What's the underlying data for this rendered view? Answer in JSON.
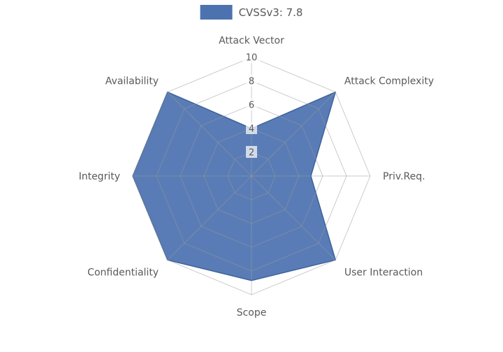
{
  "legend": {
    "label": "CVSSv3: 7.8"
  },
  "colors": {
    "series_fill": "#4C72B0",
    "series_edge": "#3D639D",
    "grid": "#9A9A9A",
    "text": "#595959",
    "tick_text": "#595959",
    "tick_box": "rgba(255,255,255,0.72)",
    "background": "#FFFFFF"
  },
  "chart_data": {
    "type": "radar",
    "title": "",
    "legend": [
      "CVSSv3: 7.8"
    ],
    "legend_position": "upper center",
    "axes": [
      "Attack Vector",
      "Attack Complexity",
      "Priv.Req.",
      "User Interaction",
      "Scope",
      "Confidentiality",
      "Integrity",
      "Availability"
    ],
    "series": [
      {
        "name": "CVSSv3: 7.8",
        "values": [
          4,
          10,
          5,
          10,
          8.8,
          10,
          10,
          10
        ]
      }
    ],
    "radial_ticks": [
      2,
      4,
      6,
      8,
      10
    ],
    "r_range": [
      0,
      10
    ],
    "start_angle_deg": 90,
    "direction": "clockwise",
    "grid": true,
    "grid_shape": "polygon"
  }
}
